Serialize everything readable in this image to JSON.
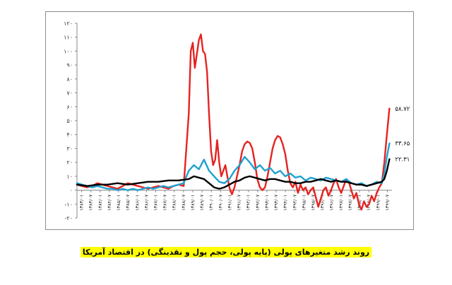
{
  "caption": "روند رشد متغیرهای پولی (پایه پولی، حجم پول و نقدینگی) در اقتصاد آمریکا",
  "chart_data": {
    "type": "line",
    "ylim": [
      -20,
      120
    ],
    "yticks": [
      "-۲۰",
      "-۱۰",
      "۰",
      "۱۰",
      "۲۰",
      "۳۰",
      "۴۰",
      "۵۰",
      "۶۰",
      "۷۰",
      "۸۰",
      "۹۰",
      "۱۰۰",
      "۱۱۰",
      "۱۲۰"
    ],
    "ytick_values": [
      -20,
      -10,
      0,
      10,
      20,
      30,
      40,
      50,
      60,
      70,
      80,
      90,
      100,
      110,
      120
    ],
    "x_tick_labels": [
      "۱۳۸۳/۰۱",
      "۱۳۸۳/۰۷",
      "۱۳۸۴/۰۱",
      "۱۳۸۴/۰۷",
      "۱۳۸۵/۰۱",
      "۱۳۸۵/۰۷",
      "۱۳۸۶/۰۱",
      "۱۳۸۶/۰۷",
      "۱۳۸۷/۰۱",
      "۱۳۸۷/۰۷",
      "۱۳۸۸/۰۱",
      "۱۳۸۸/۰۷",
      "۱۳۸۹/۰۱",
      "۱۳۸۹/۰۷",
      "۱۳۹۰/۰۱",
      "۱۳۹۰/۰۷",
      "۱۳۹۱/۰۱",
      "۱۳۹۱/۰۷",
      "۱۳۹۲/۰۱",
      "۱۳۹۲/۰۷",
      "۱۳۹۳/۰۱",
      "۱۳۹۳/۰۷",
      "۱۳۹۴/۰۱",
      "۱۳۹۴/۰۷",
      "۱۳۹۵/۰۱",
      "۱۳۹۵/۰۷",
      "۱۳۹۶/۰۱",
      "۱۳۹۶/۰۷",
      "۱۳۹۷/۰۱",
      "۱۳۹۷/۰۷",
      "۱۳۹۸/۰۱",
      "۱۳۹۸/۰۷",
      "۱۳۹۹/۰۱",
      "۱۳۹۹/۰۷"
    ],
    "grid": false,
    "series": [
      {
        "color": "#e52320",
        "end_label": "۵۸.۷۲",
        "points": [
          [
            0,
            4
          ],
          [
            1,
            3
          ],
          [
            2,
            2
          ],
          [
            3,
            3
          ],
          [
            4,
            5
          ],
          [
            5,
            4
          ],
          [
            6,
            3
          ],
          [
            7,
            2
          ],
          [
            8,
            1
          ],
          [
            9,
            3
          ],
          [
            10,
            5
          ],
          [
            11,
            4
          ],
          [
            12,
            3
          ],
          [
            13,
            2
          ],
          [
            14,
            1
          ],
          [
            15,
            2
          ],
          [
            16,
            3
          ],
          [
            17,
            2
          ],
          [
            18,
            1
          ],
          [
            19,
            3
          ],
          [
            20,
            4
          ],
          [
            21,
            3
          ],
          [
            22,
            55
          ],
          [
            22.4,
            100
          ],
          [
            22.8,
            106
          ],
          [
            23.2,
            88
          ],
          [
            23.6,
            98
          ],
          [
            24.0,
            108
          ],
          [
            24.4,
            112
          ],
          [
            24.8,
            100
          ],
          [
            25.2,
            98
          ],
          [
            25.6,
            85
          ],
          [
            26,
            55
          ],
          [
            26.4,
            28
          ],
          [
            26.8,
            18
          ],
          [
            27.2,
            22
          ],
          [
            27.6,
            36
          ],
          [
            28,
            20
          ],
          [
            28.4,
            10
          ],
          [
            28.8,
            14
          ],
          [
            29.2,
            18
          ],
          [
            29.6,
            10
          ],
          [
            30,
            2
          ],
          [
            30.5,
            -3
          ],
          [
            31,
            2
          ],
          [
            31.5,
            10
          ],
          [
            32,
            18
          ],
          [
            32.5,
            28
          ],
          [
            33,
            33
          ],
          [
            33.5,
            35
          ],
          [
            34,
            34
          ],
          [
            34.5,
            30
          ],
          [
            35,
            20
          ],
          [
            35.5,
            8
          ],
          [
            36,
            2
          ],
          [
            36.5,
            0
          ],
          [
            37,
            2
          ],
          [
            37.5,
            10
          ],
          [
            38,
            20
          ],
          [
            38.5,
            30
          ],
          [
            39,
            36
          ],
          [
            39.5,
            39
          ],
          [
            40,
            38
          ],
          [
            40.5,
            33
          ],
          [
            41,
            26
          ],
          [
            41.5,
            14
          ],
          [
            42,
            5
          ],
          [
            42.5,
            2
          ],
          [
            43,
            6
          ],
          [
            43.5,
            -2
          ],
          [
            44,
            4
          ],
          [
            44.5,
            0
          ],
          [
            45,
            2
          ],
          [
            45.5,
            -3
          ],
          [
            46,
            0
          ],
          [
            46.5,
            2
          ],
          [
            47,
            -5
          ],
          [
            47.5,
            -12
          ],
          [
            48,
            -6
          ],
          [
            48.5,
            0
          ],
          [
            49,
            2
          ],
          [
            49.5,
            -4
          ],
          [
            50,
            0
          ],
          [
            50.5,
            5
          ],
          [
            51,
            8
          ],
          [
            51.5,
            2
          ],
          [
            52,
            -2
          ],
          [
            52.5,
            3
          ],
          [
            53,
            8
          ],
          [
            53.5,
            6
          ],
          [
            54,
            0
          ],
          [
            54.5,
            -6
          ],
          [
            55,
            -2
          ],
          [
            55.5,
            -10
          ],
          [
            56,
            -14
          ],
          [
            56.5,
            -8
          ],
          [
            57,
            -12
          ],
          [
            57.5,
            -10
          ],
          [
            58,
            -4
          ],
          [
            58.5,
            -8
          ],
          [
            59,
            -2
          ],
          [
            59.5,
            2
          ],
          [
            60,
            5
          ],
          [
            60.5,
            20
          ],
          [
            61,
            40
          ],
          [
            61.5,
            58.72
          ]
        ]
      },
      {
        "color": "#1fa1d1",
        "end_label": "۳۳.۶۵",
        "points": [
          [
            0,
            5
          ],
          [
            1,
            4
          ],
          [
            2,
            3
          ],
          [
            3,
            2
          ],
          [
            4,
            3
          ],
          [
            5,
            2
          ],
          [
            6,
            1
          ],
          [
            7,
            1
          ],
          [
            8,
            0
          ],
          [
            9,
            1
          ],
          [
            10,
            0
          ],
          [
            11,
            1
          ],
          [
            12,
            0
          ],
          [
            13,
            1
          ],
          [
            14,
            2
          ],
          [
            15,
            1
          ],
          [
            16,
            2
          ],
          [
            17,
            3
          ],
          [
            18,
            2
          ],
          [
            19,
            3
          ],
          [
            20,
            4
          ],
          [
            21,
            5
          ],
          [
            22,
            14
          ],
          [
            23,
            18
          ],
          [
            24,
            15
          ],
          [
            25,
            22
          ],
          [
            26,
            14
          ],
          [
            27,
            10
          ],
          [
            28,
            6
          ],
          [
            29,
            5
          ],
          [
            30,
            8
          ],
          [
            31,
            14
          ],
          [
            32,
            18
          ],
          [
            33,
            24
          ],
          [
            34,
            20
          ],
          [
            35,
            15
          ],
          [
            36,
            18
          ],
          [
            37,
            14
          ],
          [
            38,
            16
          ],
          [
            39,
            12
          ],
          [
            40,
            14
          ],
          [
            41,
            10
          ],
          [
            42,
            12
          ],
          [
            43,
            9
          ],
          [
            44,
            10
          ],
          [
            45,
            7
          ],
          [
            46,
            9
          ],
          [
            47,
            8
          ],
          [
            48,
            7
          ],
          [
            49,
            9
          ],
          [
            50,
            8
          ],
          [
            51,
            7
          ],
          [
            52,
            6
          ],
          [
            53,
            8
          ],
          [
            54,
            5
          ],
          [
            55,
            4
          ],
          [
            56,
            5
          ],
          [
            57,
            3
          ],
          [
            58,
            4
          ],
          [
            59,
            6
          ],
          [
            60,
            5
          ],
          [
            60.5,
            12
          ],
          [
            61,
            24
          ],
          [
            61.5,
            33.65
          ]
        ]
      },
      {
        "color": "#000000",
        "end_label": "۲۲.۳۱",
        "points": [
          [
            0,
            4
          ],
          [
            2,
            3
          ],
          [
            4,
            4
          ],
          [
            6,
            4
          ],
          [
            8,
            5
          ],
          [
            10,
            4
          ],
          [
            12,
            5
          ],
          [
            14,
            6
          ],
          [
            16,
            6
          ],
          [
            18,
            7
          ],
          [
            20,
            7
          ],
          [
            22,
            8
          ],
          [
            23,
            10
          ],
          [
            24,
            9
          ],
          [
            25,
            8
          ],
          [
            26,
            5
          ],
          [
            27,
            2
          ],
          [
            28,
            1
          ],
          [
            29,
            2
          ],
          [
            30,
            4
          ],
          [
            31,
            6
          ],
          [
            32,
            7
          ],
          [
            33,
            9
          ],
          [
            34,
            10
          ],
          [
            35,
            9
          ],
          [
            36,
            8
          ],
          [
            37,
            7
          ],
          [
            38,
            8
          ],
          [
            39,
            8
          ],
          [
            40,
            7
          ],
          [
            41,
            6
          ],
          [
            42,
            6
          ],
          [
            43,
            5
          ],
          [
            44,
            5
          ],
          [
            45,
            6
          ],
          [
            46,
            6
          ],
          [
            47,
            7
          ],
          [
            48,
            8
          ],
          [
            49,
            7
          ],
          [
            50,
            6
          ],
          [
            51,
            7
          ],
          [
            52,
            6
          ],
          [
            53,
            6
          ],
          [
            54,
            5
          ],
          [
            55,
            4
          ],
          [
            56,
            4
          ],
          [
            57,
            3
          ],
          [
            58,
            4
          ],
          [
            59,
            5
          ],
          [
            60,
            6
          ],
          [
            60.5,
            8
          ],
          [
            61,
            14
          ],
          [
            61.5,
            22.31
          ]
        ]
      }
    ]
  }
}
